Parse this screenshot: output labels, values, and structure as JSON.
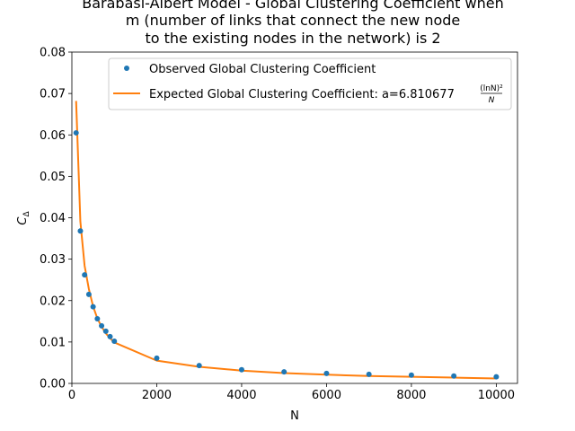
{
  "chart_data": {
    "type": "line",
    "title_lines": [
      "Barabasi-Albert Model - Global Clustering Coefficient when",
      "m (number of links that connect the new node",
      "to the existing nodes in the network) is 2"
    ],
    "xlabel": "N",
    "ylabel_main": "C",
    "ylabel_sub": "Δ",
    "xlim": [
      0,
      10500
    ],
    "ylim": [
      0,
      0.08
    ],
    "x_ticks": [
      0,
      2000,
      4000,
      6000,
      8000,
      10000
    ],
    "x_tick_labels": [
      "0",
      "2000",
      "4000",
      "6000",
      "8000",
      "10000"
    ],
    "y_ticks": [
      0,
      0.01,
      0.02,
      0.03,
      0.04,
      0.05,
      0.06,
      0.07,
      0.08
    ],
    "y_tick_labels": [
      "0.00",
      "0.01",
      "0.02",
      "0.03",
      "0.04",
      "0.05",
      "0.06",
      "0.07",
      "0.08"
    ],
    "grid": false,
    "legend_position": "top-right",
    "series": [
      {
        "name": "Observed Global Clustering Coefficient",
        "kind": "scatter",
        "color": "#1f77b4",
        "x": [
          100,
          200,
          300,
          400,
          500,
          600,
          700,
          800,
          900,
          1000,
          2000,
          3000,
          4000,
          5000,
          6000,
          7000,
          8000,
          9000,
          10000
        ],
        "y": [
          0.0605,
          0.0368,
          0.0262,
          0.0215,
          0.0185,
          0.0156,
          0.0139,
          0.0126,
          0.0113,
          0.0102,
          0.0061,
          0.0043,
          0.0033,
          0.0028,
          0.0024,
          0.0022,
          0.002,
          0.0018,
          0.0016
        ]
      },
      {
        "name_prefix": "Expected Global Clustering Coefficient: a=6.810677 ",
        "name_formula_num": "(lnN)²",
        "name_formula_den": "N",
        "kind": "line",
        "color": "#ff7f0e",
        "x": [
          100,
          200,
          300,
          400,
          500,
          600,
          700,
          800,
          900,
          1000,
          2000,
          3000,
          4000,
          5000,
          6000,
          7000,
          8000,
          9000,
          10000
        ],
        "y": [
          0.0682,
          0.0391,
          0.0284,
          0.0228,
          0.0186,
          0.0157,
          0.0137,
          0.0121,
          0.0109,
          0.0099,
          0.0055,
          0.004,
          0.0031,
          0.0025,
          0.0021,
          0.0018,
          0.0016,
          0.0014,
          0.0012
        ]
      }
    ]
  }
}
